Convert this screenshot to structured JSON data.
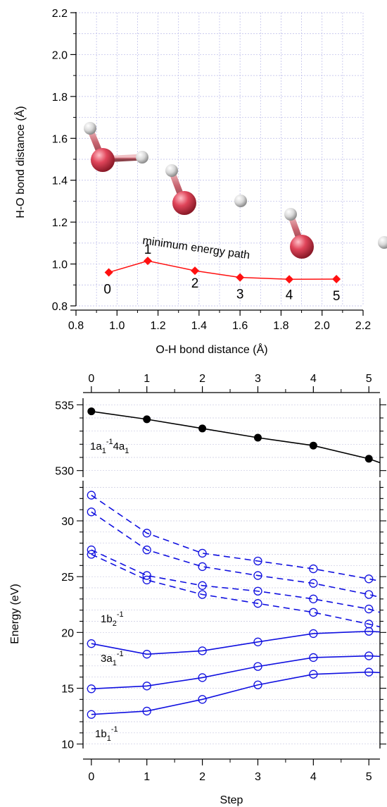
{
  "chart_data": [
    {
      "type": "scatter",
      "xlabel": "O-H bond distance (Å)",
      "ylabel": "H-O bond distance (Å)",
      "xlim": [
        0.8,
        2.2
      ],
      "ylim": [
        0.8,
        2.2
      ],
      "xticks": [
        "0.8",
        "1.0",
        "1.2",
        "1.4",
        "1.6",
        "1.8",
        "2.0",
        "2.2"
      ],
      "yticks": [
        "0.8",
        "1.0",
        "1.2",
        "1.4",
        "1.6",
        "1.8",
        "2.0",
        "2.2"
      ],
      "grid": true,
      "color": "#ff1010",
      "annotation": "minimum energy path",
      "series": [
        {
          "x": [
            0.96,
            1.15,
            1.38,
            1.6,
            1.84,
            2.07
          ],
          "y": [
            0.96,
            1.015,
            0.968,
            0.936,
            0.927,
            0.928
          ],
          "labels": [
            "0",
            "1",
            "2",
            "3",
            "4",
            "5"
          ]
        }
      ],
      "molecule_icons": [
        "water-molecule-icon",
        "bent-water-molecule-icon",
        "hydroxyl-plus-hydrogen-icon",
        "dissociated-hydrogen-icon"
      ]
    },
    {
      "type": "line",
      "xlabel": "",
      "ylabel": "",
      "xlim": [
        -0.15,
        5.2
      ],
      "ylim": [
        529.5,
        535.5
      ],
      "xticks": [
        "0",
        "1",
        "2",
        "3",
        "4",
        "5"
      ],
      "yticks": [
        "530",
        "535"
      ],
      "label_main": "1a",
      "label_sub1": "1",
      "label_sup1": "-1",
      "label_mid": "4a",
      "label_sub2": "1",
      "color": "#000000",
      "series": [
        {
          "x": [
            0,
            1,
            2,
            3,
            4,
            5,
            5.2
          ],
          "y": [
            534.5,
            533.9,
            533.2,
            532.5,
            531.9,
            530.9,
            530.6
          ],
          "marker_count": 6
        }
      ]
    },
    {
      "type": "line",
      "xlabel": "Step",
      "ylabel": "Energy (eV)",
      "xlim": [
        -0.15,
        5.2
      ],
      "ylim": [
        9.6,
        33.6
      ],
      "xticks": [
        "0",
        "1",
        "2",
        "3",
        "4",
        "5"
      ],
      "yticks": [
        "10",
        "15",
        "20",
        "25",
        "30"
      ],
      "color": "#1010e0",
      "labels": [
        {
          "main": "1b",
          "sub": "2",
          "sup": "-1"
        },
        {
          "main": "3a",
          "sub": "1",
          "sup": "-1"
        },
        {
          "main": "1b",
          "sub": "1",
          "sup": "-1"
        }
      ],
      "series": [
        {
          "style": "solid",
          "x": [
            0,
            1,
            2,
            3,
            4,
            5,
            5.2
          ],
          "y": [
            19.0,
            18.05,
            18.35,
            19.15,
            19.9,
            20.1,
            20.05
          ]
        },
        {
          "style": "solid",
          "x": [
            0,
            1,
            2,
            3,
            4,
            5,
            5.2
          ],
          "y": [
            14.95,
            15.2,
            15.95,
            16.95,
            17.75,
            17.9,
            17.85
          ]
        },
        {
          "style": "solid",
          "x": [
            0,
            1,
            2,
            3,
            4,
            5,
            5.2
          ],
          "y": [
            12.65,
            12.95,
            14.0,
            15.3,
            16.25,
            16.45,
            16.4
          ]
        },
        {
          "style": "dashed",
          "x": [
            0,
            1,
            2,
            3,
            4,
            5,
            5.2
          ],
          "y": [
            32.3,
            28.9,
            27.1,
            26.4,
            25.7,
            24.8,
            24.6
          ]
        },
        {
          "style": "dashed",
          "x": [
            0,
            1,
            2,
            3,
            4,
            5,
            5.2
          ],
          "y": [
            30.8,
            27.4,
            25.9,
            25.1,
            24.4,
            23.4,
            23.15
          ]
        },
        {
          "style": "dashed",
          "x": [
            0,
            1,
            2,
            3,
            4,
            5,
            5.2
          ],
          "y": [
            27.4,
            25.1,
            24.2,
            23.7,
            23.0,
            22.1,
            21.8
          ]
        },
        {
          "style": "dashed",
          "x": [
            0,
            1,
            2,
            3,
            4,
            5,
            5.2
          ],
          "y": [
            27.0,
            24.7,
            23.4,
            22.6,
            21.8,
            20.75,
            20.5
          ]
        }
      ]
    }
  ]
}
